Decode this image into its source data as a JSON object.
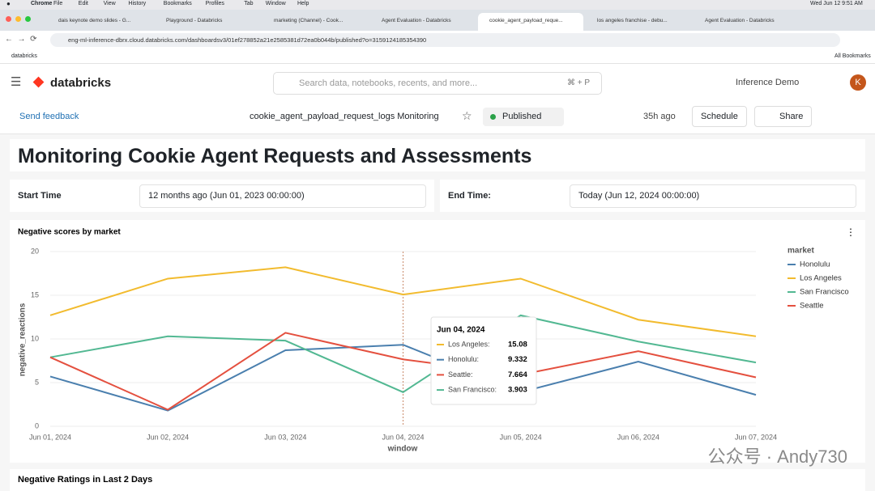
{
  "menubar": {
    "app": "Chrome",
    "items": [
      "File",
      "Edit",
      "View",
      "History",
      "Bookmarks",
      "Profiles",
      "Tab",
      "Window",
      "Help"
    ],
    "clock": "Wed Jun 12  9:51 AM"
  },
  "tabs": [
    "dais keynote demo slides - G...",
    "Playground - Databricks",
    "marketing (Channel) - Cook...",
    "Agent Evaluation - Databricks",
    "cookie_agent_payload_reque...",
    "los angeles franchise - debu...",
    "Agent Evaluation - Databricks"
  ],
  "url": "eng-ml-inference-dbrx.cloud.databricks.com/dashboardsv3/01ef278852a21e2585381d72ea0b044b/published?o=3159124185354390",
  "bookmarks": {
    "left": "databricks",
    "right": "All Bookmarks"
  },
  "app_header": {
    "brand": "databricks",
    "search_placeholder": "Search data, notebooks, recents, and more...",
    "shortcut": "⌘ + P",
    "workspace": "Inference Demo",
    "avatar": "K"
  },
  "toolbar": {
    "feedback": "Send feedback",
    "dashboard_name": "cookie_agent_payload_request_logs Monitoring",
    "status": "Published",
    "refreshed": "35h ago",
    "schedule": "Schedule",
    "share": "Share"
  },
  "dashboard": {
    "title": "Monitoring Cookie Agent Requests and Assessments",
    "filters": [
      {
        "label": "Start Time",
        "value": "12 months ago (Jun 01, 2023 00:00:00)"
      },
      {
        "label": "End Time:",
        "value": "Today (Jun 12, 2024 00:00:00)"
      }
    ],
    "next_widget_title": "Negative Ratings in Last 2 Days"
  },
  "chart_data": {
    "type": "line",
    "title": "Negative scores by market",
    "x_label": "window",
    "y_label": "negative_reactions",
    "legend_title": "market",
    "categories": [
      "Jun 01, 2024",
      "Jun 02, 2024",
      "Jun 03, 2024",
      "Jun 04, 2024",
      "Jun 05, 2024",
      "Jun 06, 2024",
      "Jun 07, 2024"
    ],
    "series": [
      {
        "name": "Honolulu",
        "color": "#4a7fae",
        "values": [
          5.7,
          1.8,
          8.7,
          9.332,
          3.9,
          7.4,
          3.6
        ]
      },
      {
        "name": "Los Angeles",
        "color": "#f2bb2e",
        "values": [
          12.7,
          16.9,
          18.2,
          15.08,
          16.9,
          12.2,
          10.3
        ]
      },
      {
        "name": "San Francisco",
        "color": "#52b892",
        "values": [
          7.9,
          10.3,
          9.8,
          3.903,
          12.7,
          9.7,
          7.3
        ]
      },
      {
        "name": "Seattle",
        "color": "#e4503f",
        "values": [
          7.9,
          1.9,
          10.7,
          7.664,
          5.9,
          8.6,
          5.6
        ]
      }
    ],
    "ylim": [
      0,
      20
    ],
    "yticks": [
      0,
      5,
      10,
      15,
      20
    ],
    "grid": true,
    "legend": "right",
    "tooltip": {
      "index": 3,
      "order": [
        1,
        0,
        3,
        2
      ],
      "labels": [
        "Los Angeles:",
        "Honolulu:",
        "Seattle:",
        "San Francisco:"
      ]
    }
  },
  "watermark": "公众号 · Andy730"
}
